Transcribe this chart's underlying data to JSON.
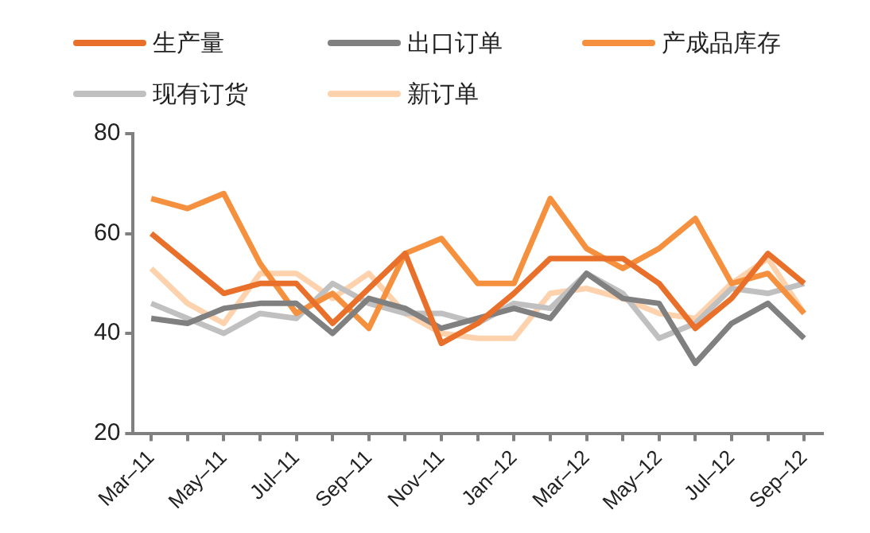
{
  "chart_data": {
    "type": "line",
    "categories": [
      "Mar–11",
      null,
      "May–11",
      null,
      "Jul–11",
      null,
      "Sep–11",
      null,
      "Nov–11",
      null,
      "Jan–12",
      null,
      "Mar–12",
      null,
      "May–12",
      null,
      "Jul–12",
      null,
      "Sep–12"
    ],
    "series": [
      {
        "name": "生产量",
        "color": "#e8702a",
        "values": [
          60,
          54,
          48,
          50,
          50,
          42,
          49,
          56,
          38,
          42,
          48,
          55,
          55,
          55,
          50,
          41,
          47,
          56,
          50
        ]
      },
      {
        "name": "出口订单",
        "color": "#808080",
        "values": [
          43,
          42,
          45,
          46,
          46,
          40,
          47,
          45,
          41,
          43,
          45,
          43,
          52,
          47,
          46,
          34,
          42,
          46,
          39
        ]
      },
      {
        "name": "产成品库存",
        "color": "#f5913e",
        "values": [
          67,
          65,
          68,
          54,
          44,
          48,
          41,
          56,
          59,
          50,
          50,
          67,
          57,
          53,
          57,
          63,
          50,
          52,
          44
        ]
      },
      {
        "name": "现有订货",
        "color": "#c0c0c0",
        "values": [
          46,
          43,
          40,
          44,
          43,
          50,
          46,
          44,
          44,
          42,
          46,
          45,
          52,
          48,
          39,
          42,
          49,
          48,
          50
        ]
      },
      {
        "name": "新订单",
        "color": "#fdd2ad",
        "values": [
          53,
          46,
          42,
          52,
          52,
          47,
          52,
          44,
          40,
          39,
          39,
          48,
          49,
          47,
          44,
          43,
          50,
          55,
          44
        ]
      }
    ],
    "ylim": [
      20,
      80
    ],
    "yticks": [
      20,
      40,
      60,
      80
    ],
    "grid": false,
    "legend": "top",
    "marker": "none",
    "line_style": "solid"
  }
}
